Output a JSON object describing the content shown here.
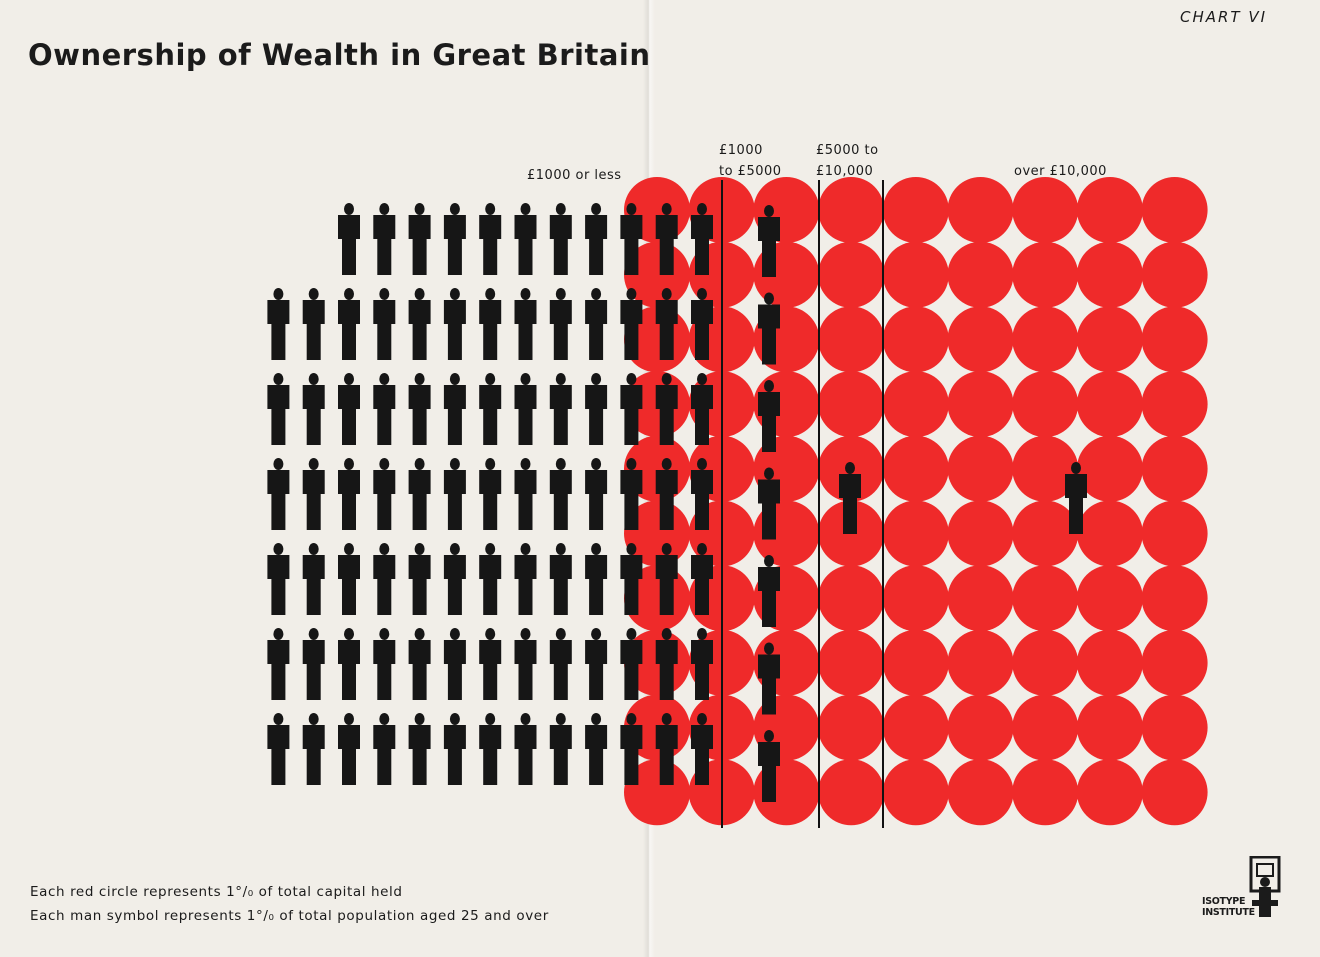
{
  "header": {
    "title": "Ownership of Wealth in Great Britain",
    "chart_number": "CHART VI"
  },
  "legend": {
    "circle_note": "Each red circle represents 1°/₀ of total capital held",
    "man_note": "Each man symbol represents 1°/₀ of total population aged 25 and over"
  },
  "logo": {
    "line1": "ISOTYPE",
    "line2": "INSTITUTE"
  },
  "chart_data": {
    "type": "isotype",
    "title": "Ownership of Wealth in Great Britain",
    "unit_circle": "1% of total capital held",
    "unit_man": "1% of total population aged 25 and over",
    "categories": [
      {
        "label": [
          "£1000 or less"
        ],
        "population_pct": 89,
        "capital_pct": 5
      },
      {
        "label": [
          "£1000",
          "to £5000"
        ],
        "population_pct": 7,
        "capital_pct": 10
      },
      {
        "label": [
          "£5000 to",
          "£10,000"
        ],
        "population_pct": 2,
        "capital_pct": 10
      },
      {
        "label": [
          "over £10,000"
        ],
        "population_pct": 1,
        "capital_pct": 60
      }
    ],
    "colors": {
      "circle": "#ef2a2a",
      "man": "#161616",
      "background": "#f1eee8"
    }
  }
}
